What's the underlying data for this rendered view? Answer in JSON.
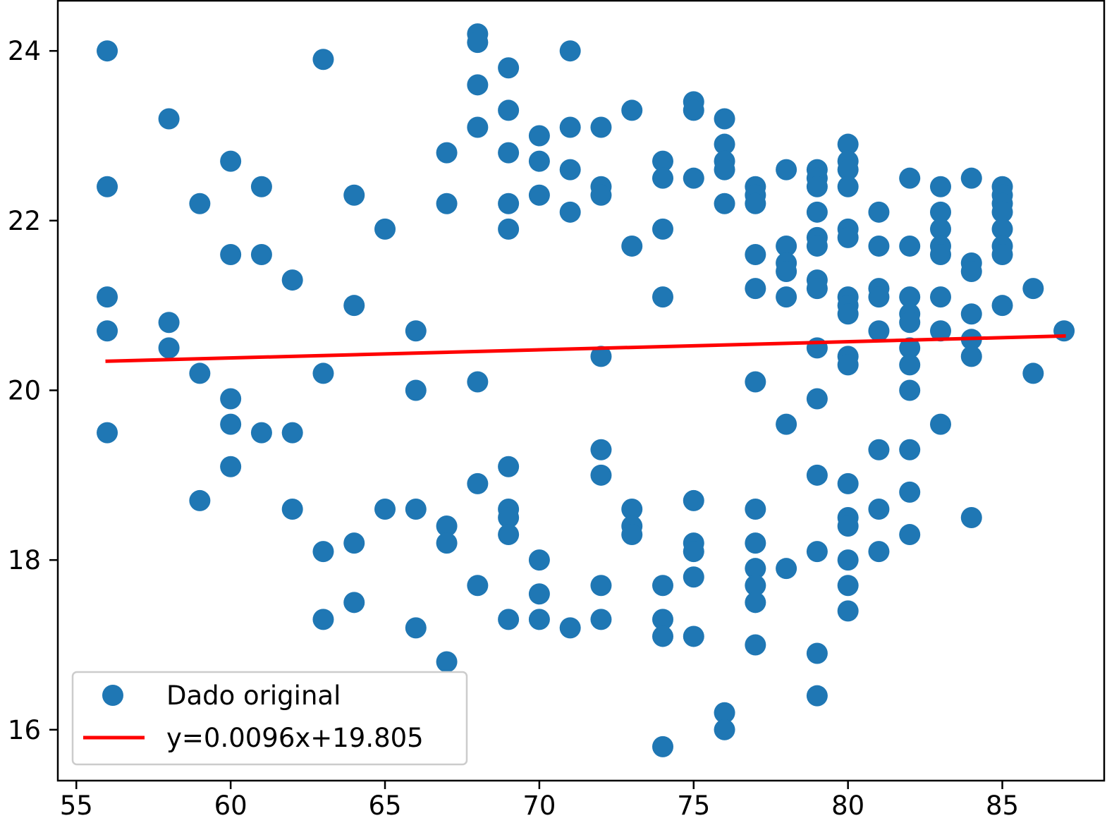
{
  "chart_data": {
    "type": "scatter",
    "title": "",
    "xlabel": "",
    "ylabel": "",
    "xlim": [
      54.4,
      88.3
    ],
    "ylim": [
      15.4,
      24.6
    ],
    "xticks": [
      55,
      60,
      65,
      70,
      75,
      80,
      85
    ],
    "yticks": [
      16,
      18,
      20,
      22,
      24
    ],
    "xtick_labels": [
      "55",
      "60",
      "65",
      "70",
      "75",
      "80",
      "85"
    ],
    "ytick_labels": [
      "16",
      "18",
      "20",
      "22",
      "24"
    ],
    "grid": false,
    "legend_position": "lower-left",
    "series": [
      {
        "name": "Dado original",
        "kind": "scatter",
        "color": "#1f77b4",
        "points": [
          [
            56,
            24.0
          ],
          [
            56,
            22.4
          ],
          [
            56,
            21.1
          ],
          [
            56,
            20.7
          ],
          [
            56,
            19.5
          ],
          [
            58,
            23.2
          ],
          [
            58,
            20.8
          ],
          [
            58,
            20.5
          ],
          [
            59,
            22.2
          ],
          [
            59,
            20.2
          ],
          [
            59,
            18.7
          ],
          [
            60,
            22.7
          ],
          [
            60,
            21.6
          ],
          [
            60,
            19.9
          ],
          [
            60,
            19.6
          ],
          [
            60,
            19.1
          ],
          [
            61,
            22.4
          ],
          [
            61,
            21.6
          ],
          [
            61,
            19.5
          ],
          [
            62,
            21.3
          ],
          [
            62,
            19.5
          ],
          [
            62,
            18.6
          ],
          [
            63,
            23.9
          ],
          [
            63,
            20.2
          ],
          [
            63,
            18.1
          ],
          [
            63,
            17.3
          ],
          [
            64,
            22.3
          ],
          [
            64,
            21.0
          ],
          [
            64,
            18.2
          ],
          [
            64,
            17.5
          ],
          [
            65,
            21.9
          ],
          [
            65,
            18.6
          ],
          [
            66,
            20.7
          ],
          [
            66,
            20.0
          ],
          [
            66,
            18.6
          ],
          [
            66,
            17.2
          ],
          [
            67,
            22.8
          ],
          [
            67,
            22.2
          ],
          [
            67,
            18.4
          ],
          [
            67,
            18.2
          ],
          [
            67,
            16.8
          ],
          [
            68,
            24.2
          ],
          [
            68,
            24.1
          ],
          [
            68,
            23.6
          ],
          [
            68,
            23.1
          ],
          [
            68,
            20.1
          ],
          [
            68,
            18.9
          ],
          [
            68,
            17.7
          ],
          [
            69,
            23.8
          ],
          [
            69,
            23.3
          ],
          [
            69,
            22.8
          ],
          [
            69,
            22.2
          ],
          [
            69,
            21.9
          ],
          [
            69,
            19.1
          ],
          [
            69,
            18.6
          ],
          [
            69,
            18.5
          ],
          [
            69,
            18.3
          ],
          [
            69,
            17.3
          ],
          [
            70,
            23.0
          ],
          [
            70,
            22.7
          ],
          [
            70,
            22.3
          ],
          [
            70,
            18.0
          ],
          [
            70,
            17.6
          ],
          [
            70,
            17.3
          ],
          [
            71,
            24.0
          ],
          [
            71,
            23.1
          ],
          [
            71,
            22.6
          ],
          [
            71,
            22.1
          ],
          [
            71,
            17.2
          ],
          [
            72,
            23.1
          ],
          [
            72,
            22.4
          ],
          [
            72,
            22.3
          ],
          [
            72,
            20.4
          ],
          [
            72,
            19.3
          ],
          [
            72,
            19.0
          ],
          [
            72,
            17.7
          ],
          [
            72,
            17.3
          ],
          [
            73,
            23.3
          ],
          [
            73,
            21.7
          ],
          [
            73,
            18.6
          ],
          [
            73,
            18.4
          ],
          [
            73,
            18.3
          ],
          [
            74,
            22.7
          ],
          [
            74,
            22.5
          ],
          [
            74,
            21.9
          ],
          [
            74,
            21.1
          ],
          [
            74,
            17.7
          ],
          [
            74,
            17.3
          ],
          [
            74,
            17.1
          ],
          [
            74,
            15.8
          ],
          [
            75,
            23.4
          ],
          [
            75,
            23.3
          ],
          [
            75,
            22.5
          ],
          [
            75,
            18.7
          ],
          [
            75,
            18.2
          ],
          [
            75,
            18.1
          ],
          [
            75,
            17.8
          ],
          [
            75,
            17.1
          ],
          [
            76,
            23.2
          ],
          [
            76,
            22.9
          ],
          [
            76,
            22.7
          ],
          [
            76,
            22.6
          ],
          [
            76,
            22.2
          ],
          [
            76,
            16.2
          ],
          [
            76,
            16.0
          ],
          [
            77,
            22.4
          ],
          [
            77,
            22.3
          ],
          [
            77,
            22.2
          ],
          [
            77,
            21.6
          ],
          [
            77,
            21.2
          ],
          [
            77,
            20.1
          ],
          [
            77,
            18.6
          ],
          [
            77,
            18.2
          ],
          [
            77,
            17.9
          ],
          [
            77,
            17.7
          ],
          [
            77,
            17.5
          ],
          [
            77,
            17.0
          ],
          [
            78,
            22.6
          ],
          [
            78,
            21.7
          ],
          [
            78,
            21.5
          ],
          [
            78,
            21.4
          ],
          [
            78,
            21.1
          ],
          [
            78,
            19.6
          ],
          [
            78,
            17.9
          ],
          [
            79,
            22.6
          ],
          [
            79,
            22.5
          ],
          [
            79,
            22.4
          ],
          [
            79,
            22.1
          ],
          [
            79,
            21.8
          ],
          [
            79,
            21.7
          ],
          [
            79,
            21.3
          ],
          [
            79,
            21.2
          ],
          [
            79,
            20.5
          ],
          [
            79,
            19.9
          ],
          [
            79,
            19.0
          ],
          [
            79,
            18.1
          ],
          [
            79,
            16.9
          ],
          [
            79,
            16.4
          ],
          [
            80,
            22.9
          ],
          [
            80,
            22.7
          ],
          [
            80,
            22.6
          ],
          [
            80,
            22.4
          ],
          [
            80,
            21.9
          ],
          [
            80,
            21.8
          ],
          [
            80,
            21.1
          ],
          [
            80,
            21.0
          ],
          [
            80,
            20.9
          ],
          [
            80,
            20.4
          ],
          [
            80,
            20.3
          ],
          [
            80,
            18.9
          ],
          [
            80,
            18.5
          ],
          [
            80,
            18.4
          ],
          [
            80,
            18.0
          ],
          [
            80,
            17.7
          ],
          [
            80,
            17.4
          ],
          [
            81,
            22.1
          ],
          [
            81,
            21.7
          ],
          [
            81,
            21.2
          ],
          [
            81,
            21.1
          ],
          [
            81,
            20.7
          ],
          [
            81,
            19.3
          ],
          [
            81,
            18.6
          ],
          [
            81,
            18.1
          ],
          [
            82,
            22.5
          ],
          [
            82,
            21.7
          ],
          [
            82,
            21.1
          ],
          [
            82,
            20.9
          ],
          [
            82,
            20.8
          ],
          [
            82,
            20.5
          ],
          [
            82,
            20.3
          ],
          [
            82,
            20.0
          ],
          [
            82,
            19.3
          ],
          [
            82,
            18.8
          ],
          [
            82,
            18.3
          ],
          [
            83,
            22.4
          ],
          [
            83,
            22.1
          ],
          [
            83,
            21.9
          ],
          [
            83,
            21.7
          ],
          [
            83,
            21.6
          ],
          [
            83,
            21.1
          ],
          [
            83,
            20.7
          ],
          [
            83,
            19.6
          ],
          [
            84,
            22.5
          ],
          [
            84,
            21.5
          ],
          [
            84,
            21.4
          ],
          [
            84,
            20.9
          ],
          [
            84,
            20.6
          ],
          [
            84,
            20.4
          ],
          [
            84,
            18.5
          ],
          [
            85,
            22.4
          ],
          [
            85,
            22.3
          ],
          [
            85,
            22.2
          ],
          [
            85,
            22.1
          ],
          [
            85,
            21.9
          ],
          [
            85,
            21.7
          ],
          [
            85,
            21.6
          ],
          [
            85,
            21.0
          ],
          [
            86,
            21.2
          ],
          [
            86,
            20.2
          ],
          [
            87,
            20.7
          ]
        ]
      },
      {
        "name": "y=0.0096x+19.805",
        "kind": "line",
        "color": "#ff0000",
        "x": [
          56,
          87
        ],
        "y": [
          20.343,
          20.64
        ]
      }
    ]
  }
}
